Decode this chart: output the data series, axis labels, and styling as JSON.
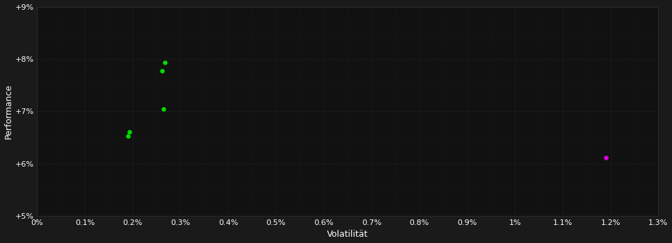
{
  "background_color": "#1a1a1a",
  "plot_bg_color": "#111111",
  "grid_major_color": "#2a2a2a",
  "grid_minor_color": "#222222",
  "xlabel": "Volatilität",
  "ylabel": "Performance",
  "xlim": [
    0.0,
    0.013
  ],
  "ylim": [
    0.05,
    0.09
  ],
  "xticks": [
    0.0,
    0.001,
    0.002,
    0.003,
    0.004,
    0.005,
    0.006,
    0.007,
    0.008,
    0.009,
    0.01,
    0.011,
    0.012,
    0.013
  ],
  "xtick_labels": [
    "0%",
    "0.1%",
    "0.2%",
    "0.3%",
    "0.4%",
    "0.5%",
    "0.6%",
    "0.7%",
    "0.8%",
    "0.9%",
    "1%",
    "1.1%",
    "1.2%",
    "1.3%"
  ],
  "yticks": [
    0.05,
    0.06,
    0.07,
    0.08,
    0.09
  ],
  "ytick_labels": [
    "+5%",
    "+6%",
    "+7%",
    "+8%",
    "+9%"
  ],
  "y_minor_ticks": [
    0.05,
    0.055,
    0.06,
    0.065,
    0.07,
    0.075,
    0.08,
    0.085,
    0.09
  ],
  "green_points": [
    [
      0.0019,
      0.0653
    ],
    [
      0.00193,
      0.066
    ],
    [
      0.00265,
      0.0705
    ],
    [
      0.00268,
      0.0793
    ],
    [
      0.00262,
      0.0778
    ]
  ],
  "magenta_points": [
    [
      0.0119,
      0.0612
    ]
  ],
  "green_color": "#00dd00",
  "magenta_color": "#dd00dd",
  "marker_size": 22,
  "text_color": "#ffffff",
  "font_size_labels": 9,
  "font_size_ticks": 8
}
